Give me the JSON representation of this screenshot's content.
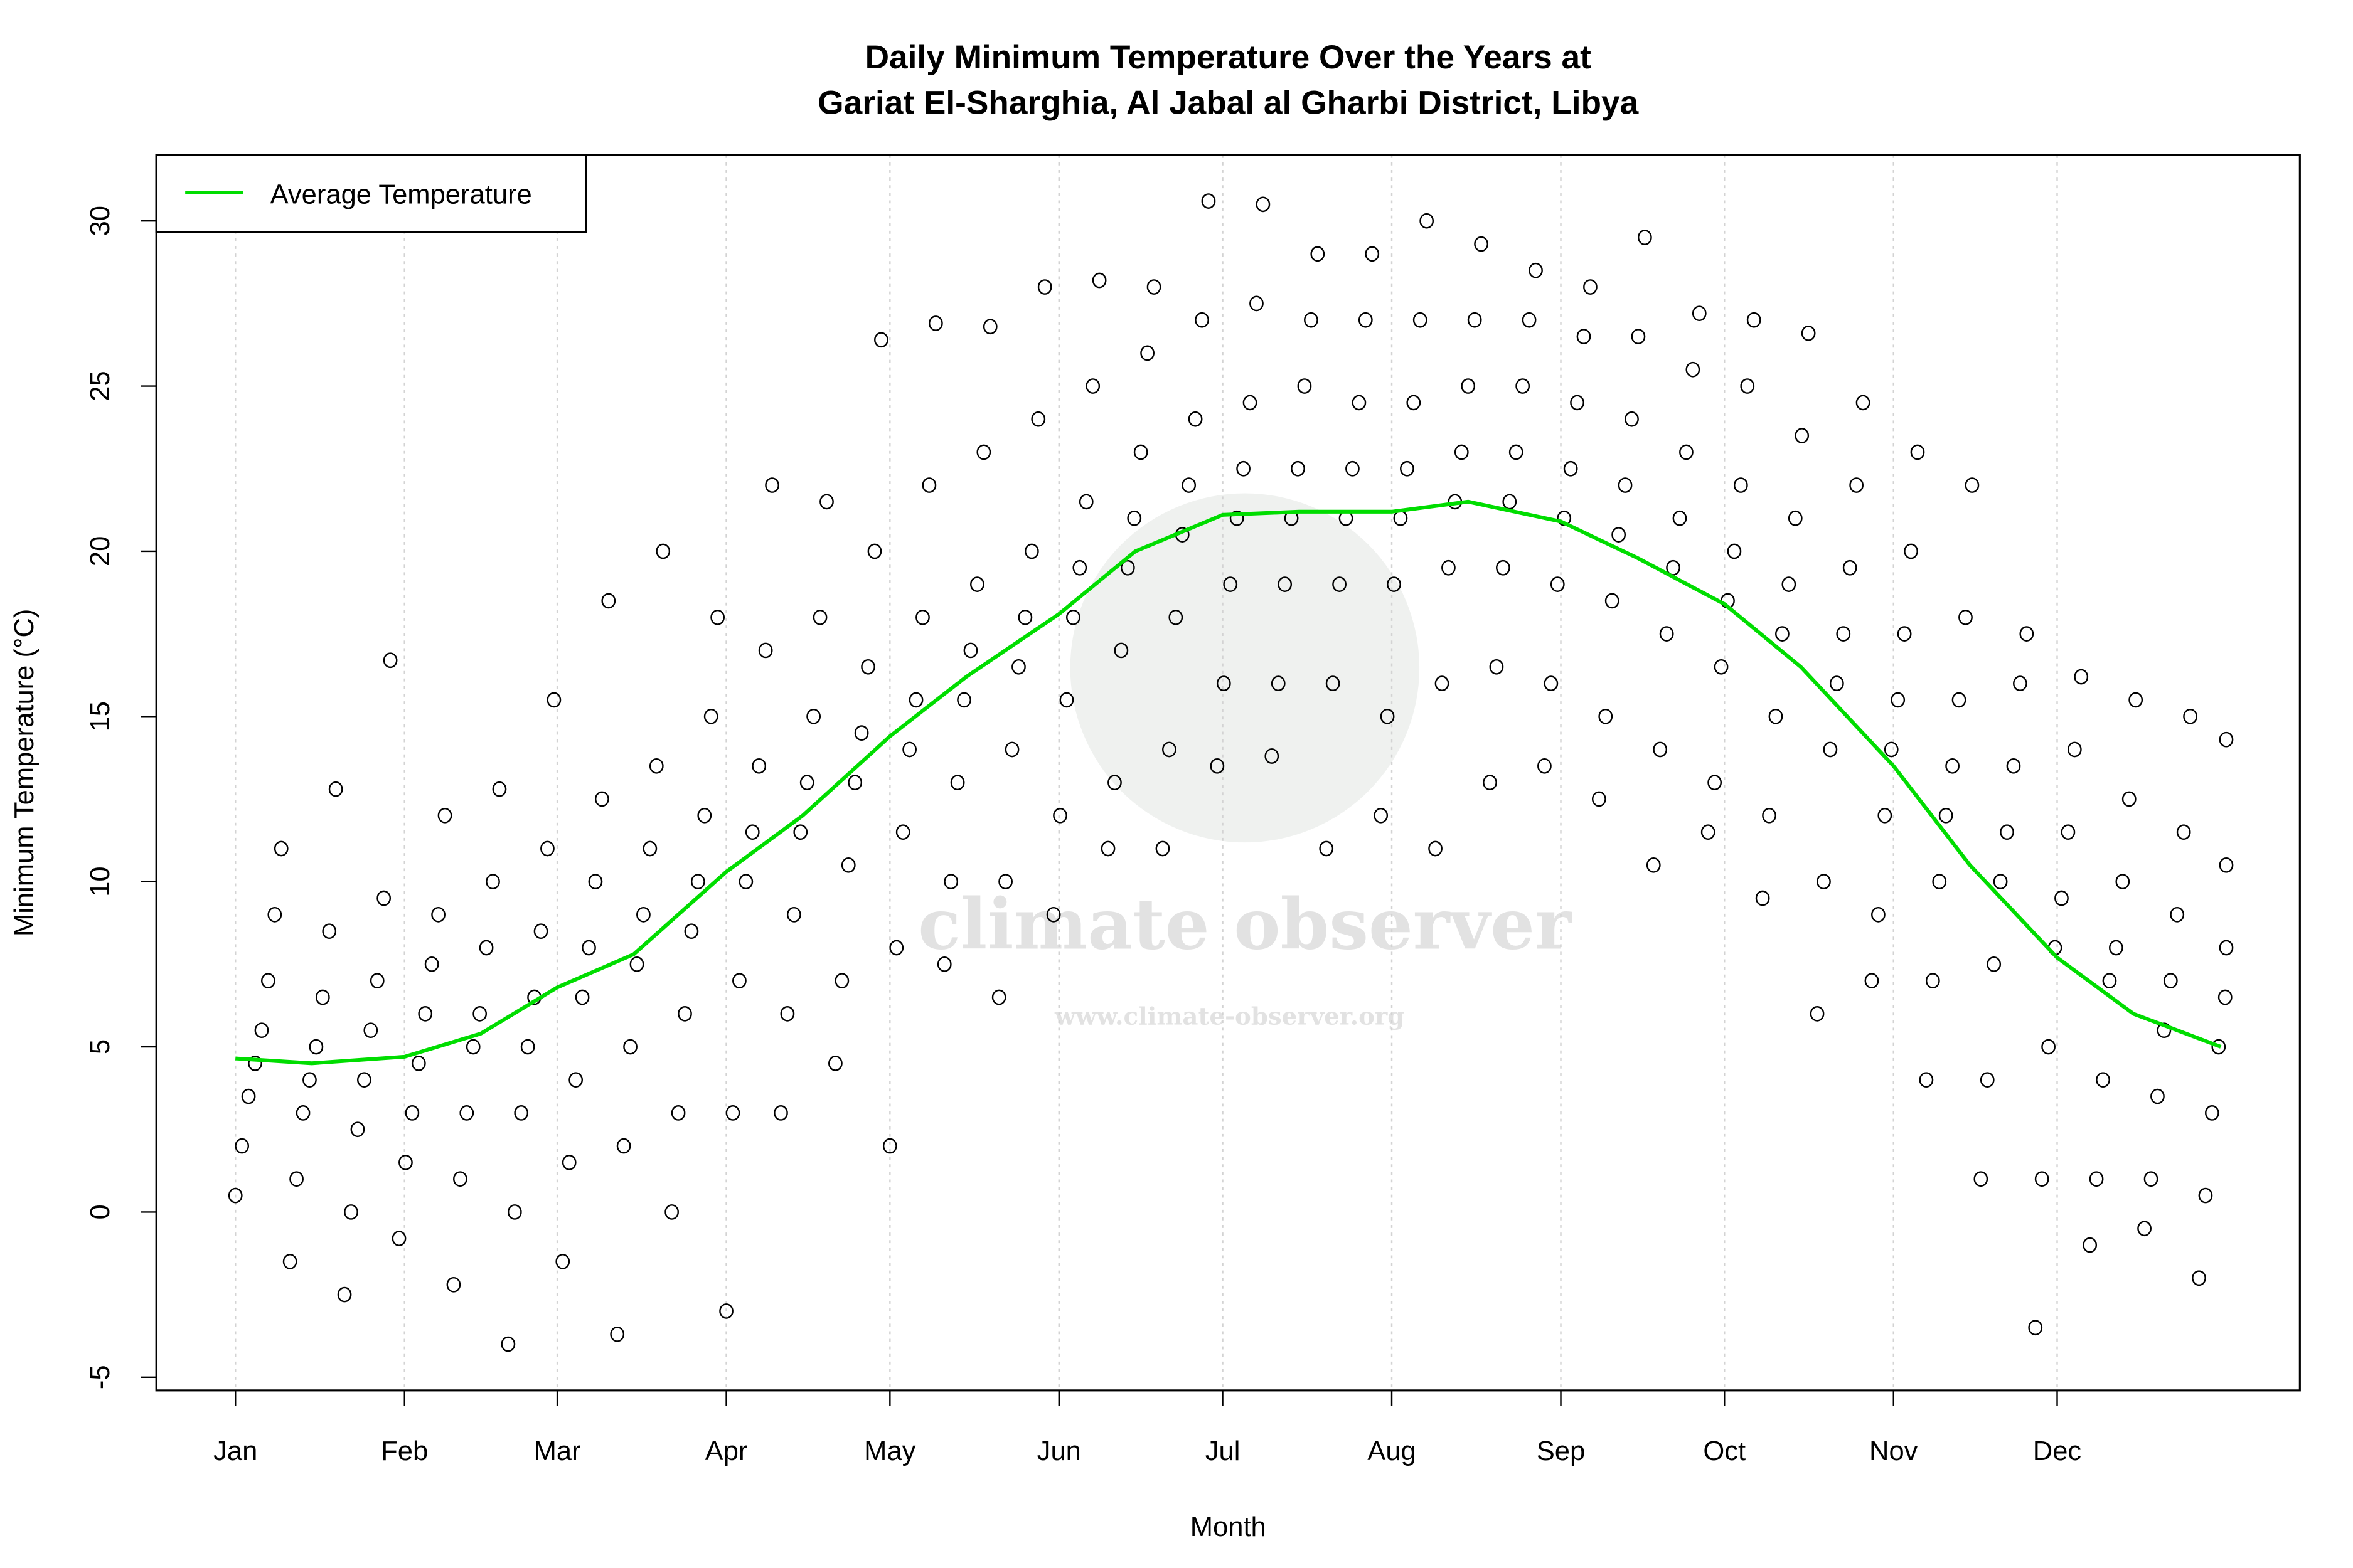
{
  "chart_data": {
    "type": "scatter",
    "title": [
      "Daily Minimum Temperature Over the Years at",
      "Gariat El-Sharghia, Al Jabal al Gharbi District, Libya"
    ],
    "xlabel": "Month",
    "ylabel": "Minimum Temperature (°C)",
    "x_ticks": [
      {
        "label": "Jan",
        "day": 0
      },
      {
        "label": "Feb",
        "day": 31
      },
      {
        "label": "Mar",
        "day": 59
      },
      {
        "label": "Apr",
        "day": 90
      },
      {
        "label": "May",
        "day": 120
      },
      {
        "label": "Jun",
        "day": 151
      },
      {
        "label": "Jul",
        "day": 181
      },
      {
        "label": "Aug",
        "day": 212
      },
      {
        "label": "Sep",
        "day": 243
      },
      {
        "label": "Oct",
        "day": 273
      },
      {
        "label": "Nov",
        "day": 304
      },
      {
        "label": "Dec",
        "day": 334
      }
    ],
    "y_ticks": [
      "-5",
      "0",
      "5",
      "10",
      "15",
      "20",
      "25",
      "30"
    ],
    "ylim": [
      -5.4,
      32
    ],
    "xlim": [
      -14.5,
      378.5
    ],
    "grid": "vertical dotted at month starts",
    "legend": {
      "position": "top-left",
      "entries": [
        {
          "label": "Average Temperature",
          "color": "#00dd00"
        }
      ]
    },
    "point_color": "#000000",
    "average_line": {
      "name": "Average Temperature",
      "color": "#00dd00",
      "day": [
        0,
        14,
        31,
        45,
        59,
        73,
        90,
        104,
        120,
        134,
        151,
        165,
        181,
        195,
        212,
        226,
        243,
        257,
        273,
        287,
        304,
        318,
        334,
        348,
        364
      ],
      "temp": [
        4.65,
        4.5,
        4.7,
        5.4,
        6.8,
        7.8,
        10.3,
        12.0,
        14.4,
        16.2,
        18.1,
        20.0,
        21.1,
        21.2,
        21.2,
        21.5,
        20.9,
        19.8,
        18.4,
        16.5,
        13.5,
        10.5,
        7.7,
        6.0,
        5.0
      ]
    },
    "points_by_day": [
      {
        "day": 0,
        "temps": [
          0.5,
          2,
          3.5,
          4.5,
          5.5,
          7,
          9,
          11
        ]
      },
      {
        "day": 10,
        "temps": [
          -1.5,
          1,
          3,
          4,
          5,
          6.5,
          8.5,
          12.8
        ]
      },
      {
        "day": 20,
        "temps": [
          -2.5,
          0,
          2.5,
          4,
          5.5,
          7,
          9.5,
          16.7
        ]
      },
      {
        "day": 30,
        "temps": [
          -0.8,
          1.5,
          3,
          4.5,
          6,
          7.5,
          9,
          12
        ]
      },
      {
        "day": 40,
        "temps": [
          -2.2,
          1,
          3,
          5,
          6,
          8,
          10,
          12.8
        ]
      },
      {
        "day": 50,
        "temps": [
          -4,
          0,
          3,
          5,
          6.5,
          8.5,
          11,
          15.5
        ]
      },
      {
        "day": 60,
        "temps": [
          -1.5,
          1.5,
          4,
          6.5,
          8,
          10,
          12.5,
          18.5
        ]
      },
      {
        "day": 70,
        "temps": [
          -3.7,
          2,
          5,
          7.5,
          9,
          11,
          13.5,
          20
        ]
      },
      {
        "day": 80,
        "temps": [
          0,
          3,
          6,
          8.5,
          10,
          12,
          15,
          18
        ]
      },
      {
        "day": 90,
        "temps": [
          -3,
          3,
          7,
          10,
          11.5,
          13.5,
          17,
          22
        ]
      },
      {
        "day": 100,
        "temps": [
          3,
          6,
          9,
          11.5,
          13,
          15,
          18,
          21.5
        ]
      },
      {
        "day": 110,
        "temps": [
          4.5,
          7,
          10.5,
          13,
          14.5,
          16.5,
          20,
          26.4
        ]
      },
      {
        "day": 120,
        "temps": [
          2,
          8,
          11.5,
          14,
          15.5,
          18,
          22,
          26.9
        ]
      },
      {
        "day": 130,
        "temps": [
          7.5,
          10,
          13,
          15.5,
          17,
          19,
          23,
          26.8
        ]
      },
      {
        "day": 140,
        "temps": [
          6.5,
          10,
          14,
          16.5,
          18,
          20,
          24,
          28
        ]
      },
      {
        "day": 150,
        "temps": [
          9,
          12,
          15.5,
          18,
          19.5,
          21.5,
          25,
          28.2
        ]
      },
      {
        "day": 160,
        "temps": [
          11,
          13,
          17,
          19.5,
          21,
          23,
          26,
          28
        ]
      },
      {
        "day": 170,
        "temps": [
          11,
          14,
          18,
          20.5,
          22,
          24,
          27,
          30.6
        ]
      },
      {
        "day": 180,
        "temps": [
          13.5,
          16,
          19,
          21,
          22.5,
          24.5,
          27.5,
          30.5
        ]
      },
      {
        "day": 190,
        "temps": [
          13.8,
          16,
          19,
          21,
          22.5,
          25,
          27,
          29
        ]
      },
      {
        "day": 200,
        "temps": [
          11,
          16,
          19,
          21,
          22.5,
          24.5,
          27,
          29
        ]
      },
      {
        "day": 210,
        "temps": [
          12,
          15,
          19,
          21,
          22.5,
          24.5,
          27,
          30
        ]
      },
      {
        "day": 220,
        "temps": [
          11,
          16,
          19.5,
          21.5,
          23,
          25,
          27,
          29.3
        ]
      },
      {
        "day": 230,
        "temps": [
          13,
          16.5,
          19.5,
          21.5,
          23,
          25,
          27,
          28.5
        ]
      },
      {
        "day": 240,
        "temps": [
          13.5,
          16,
          19,
          21,
          22.5,
          24.5,
          26.5,
          28
        ]
      },
      {
        "day": 250,
        "temps": [
          12.5,
          15,
          18.5,
          20.5,
          22,
          24,
          26.5,
          29.5
        ]
      },
      {
        "day": 260,
        "temps": [
          10.5,
          14,
          17.5,
          19.5,
          21,
          23,
          25.5,
          27.2
        ]
      },
      {
        "day": 270,
        "temps": [
          11.5,
          13,
          16.5,
          18.5,
          20,
          22,
          25,
          27
        ]
      },
      {
        "day": 280,
        "temps": [
          9.5,
          12,
          15,
          17.5,
          19,
          21,
          23.5,
          26.6
        ]
      },
      {
        "day": 290,
        "temps": [
          6,
          10,
          14,
          16,
          17.5,
          19.5,
          22,
          24.5
        ]
      },
      {
        "day": 300,
        "temps": [
          7,
          9,
          12,
          14,
          15.5,
          17.5,
          20,
          23
        ]
      },
      {
        "day": 310,
        "temps": [
          4,
          7,
          10,
          12,
          13.5,
          15.5,
          18,
          22
        ]
      },
      {
        "day": 320,
        "temps": [
          1,
          4,
          7.5,
          10,
          11.5,
          13.5,
          16,
          17.5
        ]
      },
      {
        "day": 330,
        "temps": [
          -3.5,
          1,
          5,
          8,
          9.5,
          11.5,
          14,
          16.2
        ]
      },
      {
        "day": 340,
        "temps": [
          -1,
          1,
          4,
          7,
          8,
          10,
          12.5,
          15.5
        ]
      },
      {
        "day": 350,
        "temps": [
          -0.5,
          1,
          3.5,
          5.5,
          7,
          9,
          11.5,
          15
        ]
      },
      {
        "day": 360,
        "temps": [
          -2,
          0.5,
          3,
          5,
          6.5,
          8,
          10.5,
          14.3
        ]
      }
    ]
  },
  "watermark": {
    "name": "climate observer",
    "url": "www.climate-observer.org"
  }
}
